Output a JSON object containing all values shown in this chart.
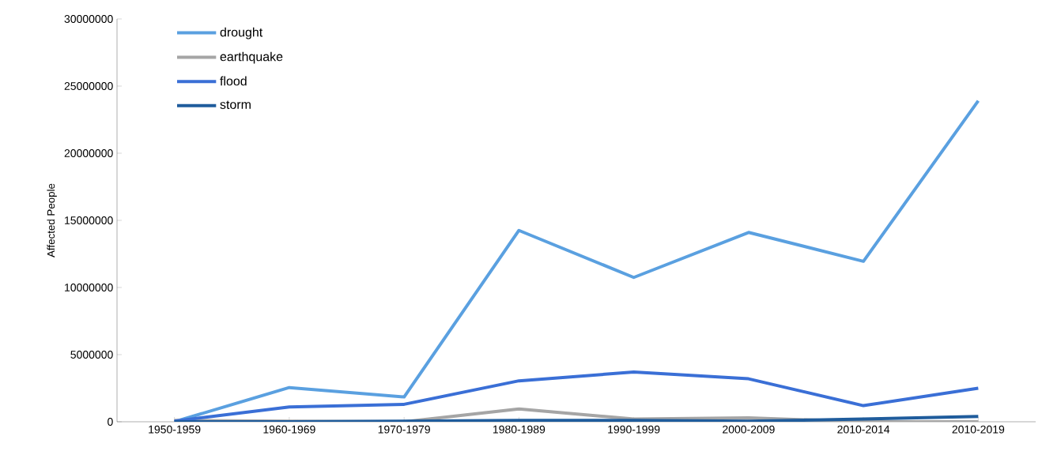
{
  "chart_data": {
    "type": "line",
    "ylabel": "Affected People",
    "categories": [
      "1950-1959",
      "1960-1969",
      "1970-1979",
      "1980-1989",
      "1990-1999",
      "2000-2009",
      "2010-2014",
      "2010-2019"
    ],
    "series": [
      {
        "name": "drought",
        "color": "#5aa0e0",
        "values": [
          0,
          2550000,
          1850000,
          14250000,
          10750000,
          14100000,
          11950000,
          23900000
        ]
      },
      {
        "name": "earthquake",
        "color": "#a5a5a5",
        "values": [
          100000,
          50000,
          0,
          950000,
          200000,
          300000,
          0,
          0
        ]
      },
      {
        "name": "flood",
        "color": "#3a6fd6",
        "values": [
          50000,
          1100000,
          1300000,
          3050000,
          3700000,
          3200000,
          1200000,
          2500000
        ]
      },
      {
        "name": "storm",
        "color": "#1f5c9c",
        "values": [
          0,
          0,
          50000,
          100000,
          100000,
          50000,
          200000,
          400000
        ]
      }
    ],
    "ylim": [
      0,
      30000000
    ],
    "yticks": [
      0,
      5000000,
      10000000,
      15000000,
      20000000,
      25000000,
      30000000
    ],
    "legend": "top left"
  }
}
